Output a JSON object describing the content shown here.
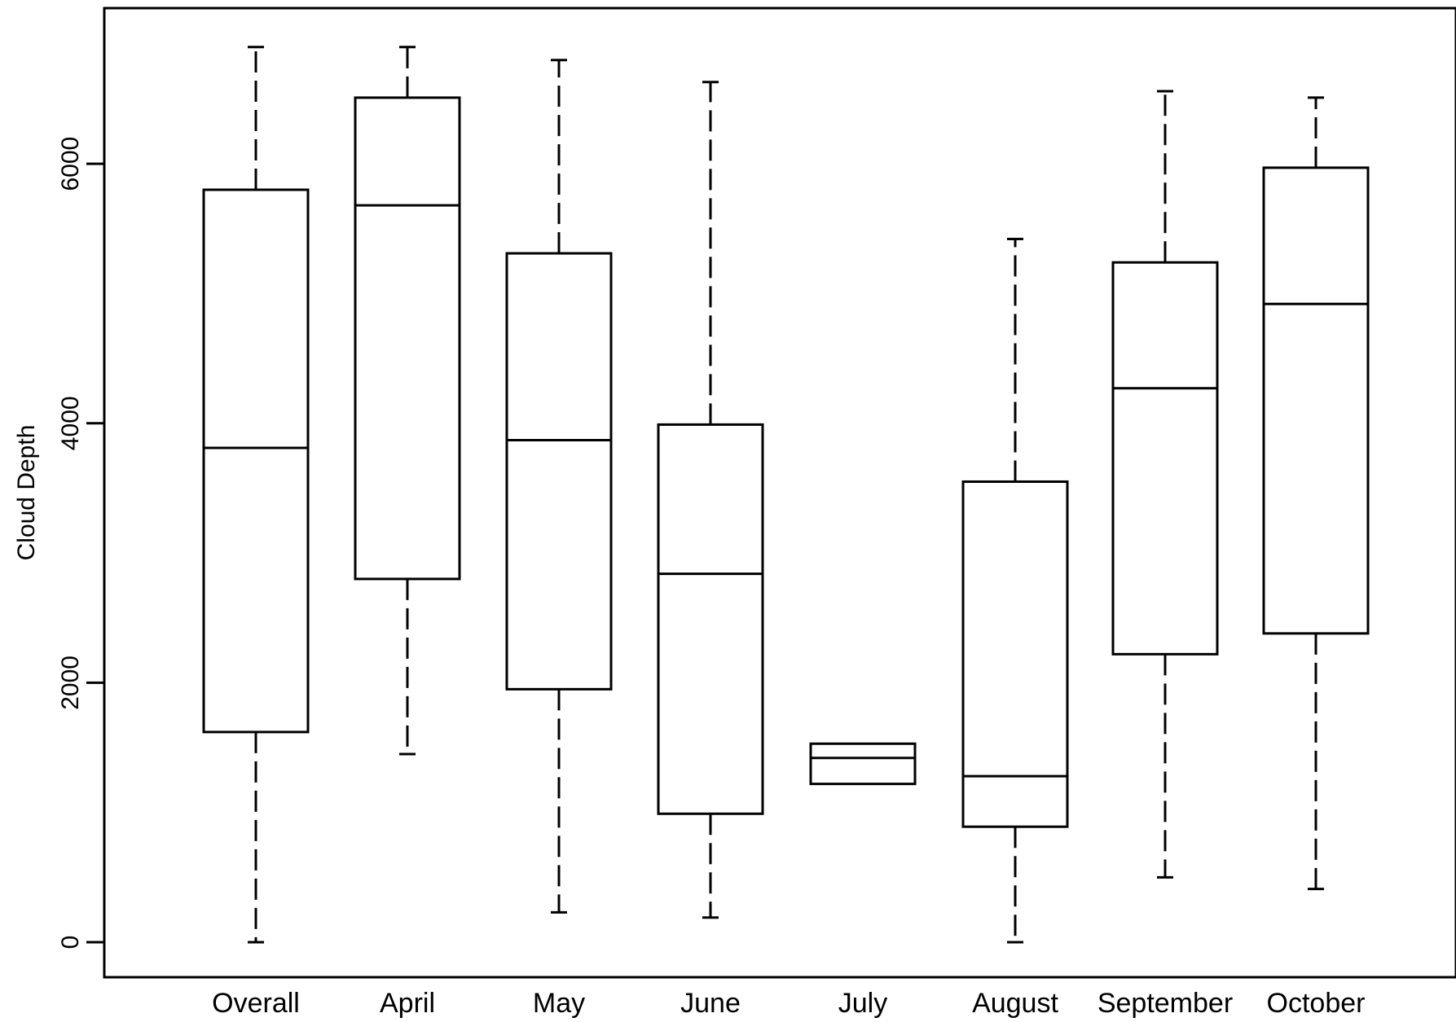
{
  "chart_data": {
    "type": "boxplot",
    "title": "",
    "xlabel": "",
    "ylabel": "Cloud Depth",
    "ylim": [
      -270,
      7200
    ],
    "yticks": [
      0,
      2000,
      4000,
      6000
    ],
    "ytick_labels": [
      "0",
      "2000",
      "4000",
      "6000"
    ],
    "grid": false,
    "categories": [
      "Overall",
      "April",
      "May",
      "June",
      "July",
      "August",
      "September",
      "October"
    ],
    "boxes": [
      {
        "label": "Overall",
        "whisker_low": 0,
        "q1": 1620,
        "median": 3810,
        "q3": 5800,
        "whisker_high": 6900
      },
      {
        "label": "April",
        "whisker_low": 1450,
        "q1": 2800,
        "median": 5680,
        "q3": 6510,
        "whisker_high": 6900
      },
      {
        "label": "May",
        "whisker_low": 230,
        "q1": 1950,
        "median": 3870,
        "q3": 5310,
        "whisker_high": 6800
      },
      {
        "label": "June",
        "whisker_low": 190,
        "q1": 990,
        "median": 2840,
        "q3": 3990,
        "whisker_high": 6630
      },
      {
        "label": "July",
        "whisker_low": 1220,
        "q1": 1220,
        "median": 1420,
        "q3": 1530,
        "whisker_high": 1530
      },
      {
        "label": "August",
        "whisker_low": 0,
        "q1": 890,
        "median": 1280,
        "q3": 3550,
        "whisker_high": 5420
      },
      {
        "label": "September",
        "whisker_low": 500,
        "q1": 2220,
        "median": 4270,
        "q3": 5240,
        "whisker_high": 6560
      },
      {
        "label": "October",
        "whisker_low": 410,
        "q1": 2380,
        "median": 4920,
        "q3": 5970,
        "whisker_high": 6510
      }
    ]
  }
}
